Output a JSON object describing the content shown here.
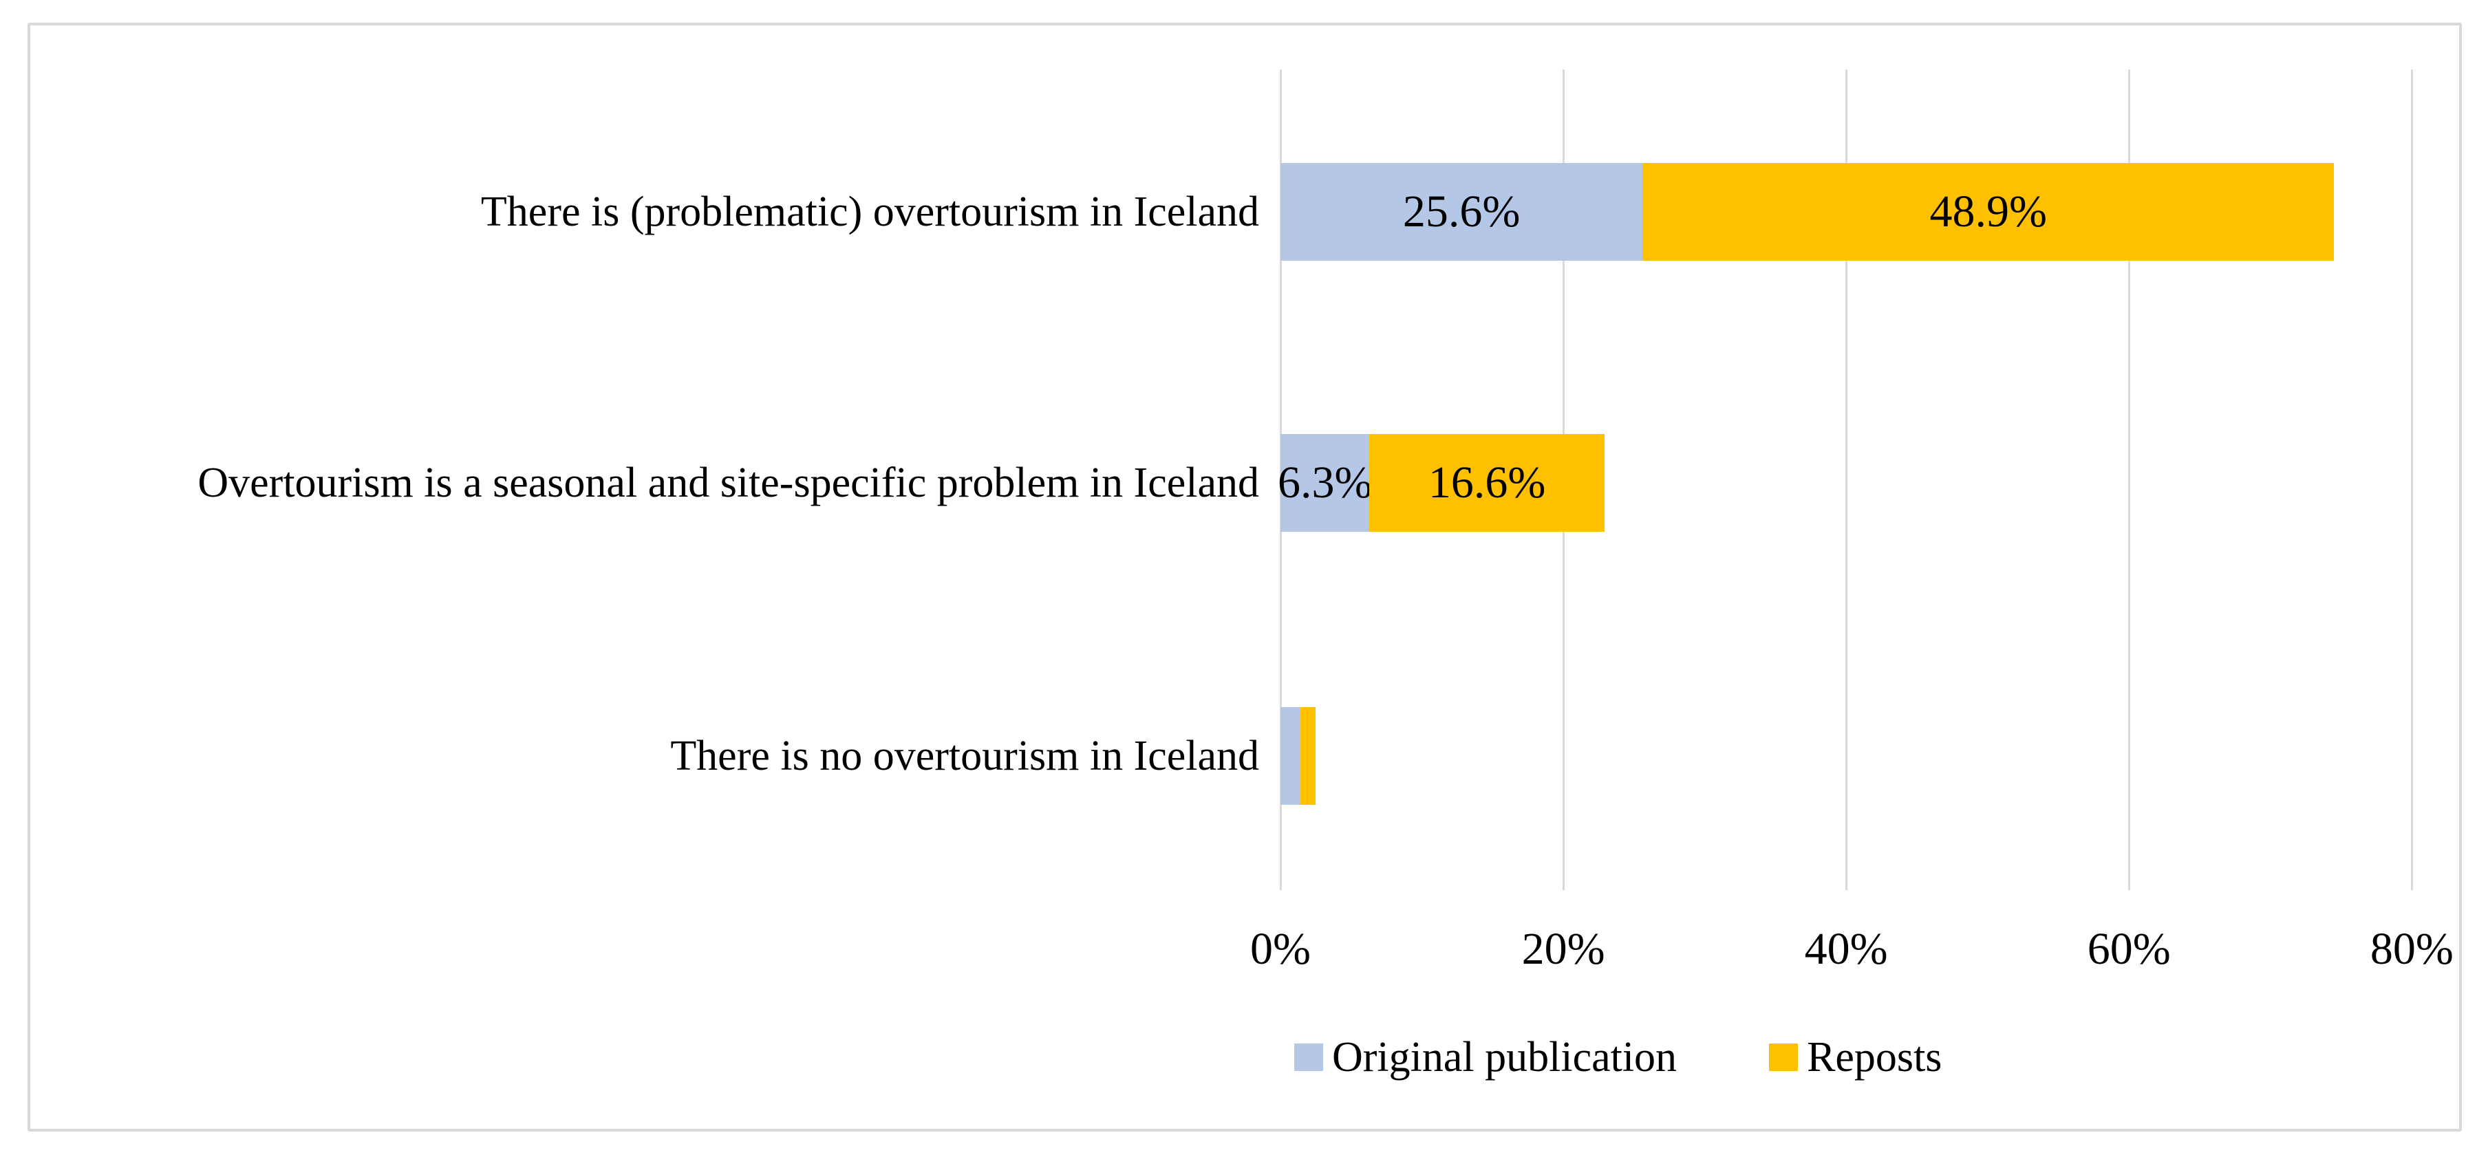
{
  "chart_data": {
    "type": "bar",
    "variant": "horizontal-stacked",
    "title": "",
    "categories": [
      "There is (problematic) overtourism in Iceland",
      "Overtourism is a seasonal and site-specific problem in Iceland",
      "There is no overtourism in Iceland"
    ],
    "series": [
      {
        "name": "Original publication",
        "color": "#B4C7E7",
        "values": [
          25.6,
          6.3,
          1.4
        ],
        "labels": [
          "25.6%",
          "6.3%",
          ""
        ]
      },
      {
        "name": "Reposts",
        "color": "#FFC000",
        "values": [
          48.9,
          16.6,
          1.1
        ],
        "labels": [
          "48.9%",
          "16.6%",
          ""
        ]
      }
    ],
    "x_axis": {
      "ticks": [
        0,
        20,
        40,
        60,
        80
      ],
      "tick_labels": [
        "0%",
        "20%",
        "40%",
        "60%",
        "80%"
      ],
      "min": 0,
      "max": 83,
      "unit": "%"
    },
    "grid": "vertical-only",
    "legend": {
      "position": "bottom",
      "items": [
        "Original publication",
        "Reposts"
      ]
    },
    "colors": {
      "gridline": "#D9D9D9",
      "frame_border": "#D9D9D9",
      "background": "#FFFFFF",
      "text": "#000000"
    }
  }
}
